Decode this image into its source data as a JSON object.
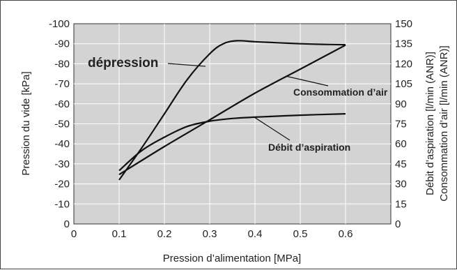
{
  "chart_data": {
    "type": "line",
    "title": "",
    "xlabel": "Pression d’alimentation [MPa]",
    "ylabel_left": "Pression du vide [kPa]",
    "ylabel_right_1": "Débit d’aspiration [l/min (ANR)]",
    "ylabel_right_2": "Consommation d’air [l/min (ANR)]",
    "xlim": [
      0,
      0.7
    ],
    "ylim_left": [
      0,
      -100
    ],
    "ylim_right": [
      0,
      150
    ],
    "grid": true,
    "x_ticks": [
      "0",
      "0.1",
      "0.2",
      "0.3",
      "0.4",
      "0.5",
      "0.6"
    ],
    "y_left_ticks": [
      "0",
      "-10",
      "-20",
      "-30",
      "-40",
      "-50",
      "-60",
      "-70",
      "-80",
      "-90",
      "-100"
    ],
    "y_right_ticks": [
      "0",
      "15",
      "30",
      "45",
      "60",
      "75",
      "90",
      "105",
      "120",
      "135",
      "150"
    ],
    "series": [
      {
        "name": "dépression",
        "axis": "left",
        "x": [
          0.1,
          0.15,
          0.2,
          0.25,
          0.3,
          0.33,
          0.36,
          0.4,
          0.45,
          0.5,
          0.55,
          0.6
        ],
        "y": [
          -22,
          -38,
          -55,
          -72,
          -85,
          -90,
          -91.5,
          -91,
          -90.5,
          -90,
          -89.7,
          -89.5
        ]
      },
      {
        "name": "Consommation d’air",
        "axis": "right",
        "x": [
          0.1,
          0.2,
          0.3,
          0.4,
          0.5,
          0.6
        ],
        "y": [
          37,
          58,
          78,
          98,
          116,
          134
        ]
      },
      {
        "name": "Débit d’aspiration",
        "axis": "right",
        "x": [
          0.1,
          0.15,
          0.2,
          0.25,
          0.3,
          0.35,
          0.4,
          0.5,
          0.6
        ],
        "y": [
          40,
          55,
          65,
          73,
          77,
          79,
          80,
          81.5,
          82.5
        ]
      }
    ],
    "annotations": [
      {
        "text": "dépression",
        "series": 0
      },
      {
        "text": "Consommation d’air",
        "series": 1
      },
      {
        "text": "Débit d’aspiration",
        "series": 2
      }
    ]
  }
}
